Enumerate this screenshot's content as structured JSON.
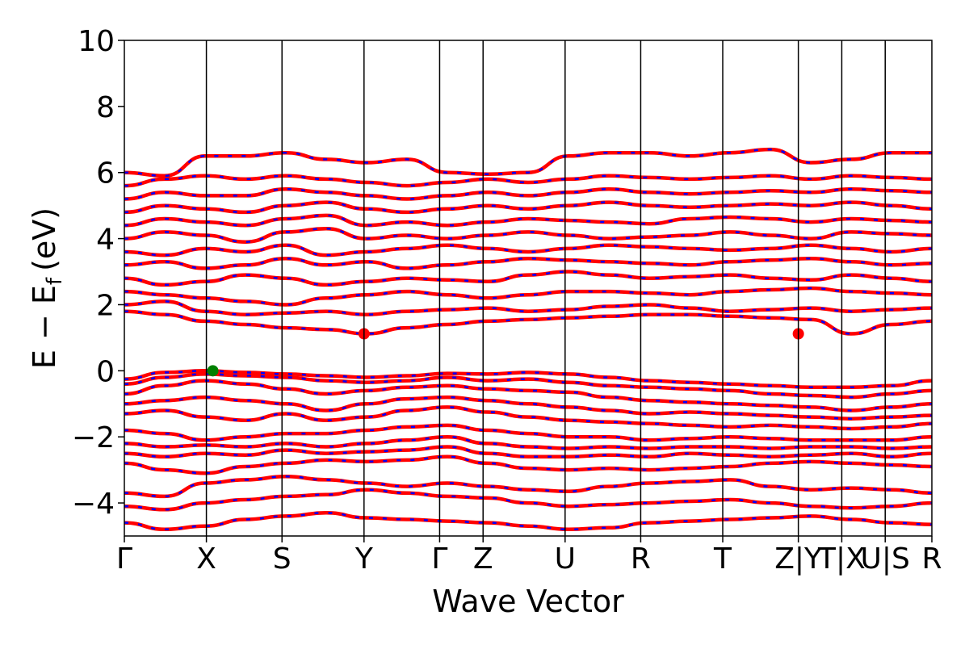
{
  "chart_data": {
    "type": "line",
    "title": "",
    "xlabel": "Wave Vector",
    "ylabel": "E − E",
    "ylabel_subscript": "f",
    "ylabel_unit": "(eV)",
    "ylim": [
      -5,
      10
    ],
    "yticks": [
      -4,
      -2,
      0,
      2,
      4,
      6,
      8,
      10
    ],
    "ytick_labels": [
      "−4",
      "−2",
      "0",
      "2",
      "4",
      "6",
      "8",
      "10"
    ],
    "xlim": [
      0,
      10.04
    ],
    "kpath_ticks": [
      {
        "x": 0.0,
        "label": "Γ"
      },
      {
        "x": 1.02,
        "label": "X"
      },
      {
        "x": 1.96,
        "label": "S"
      },
      {
        "x": 2.98,
        "label": "Y"
      },
      {
        "x": 3.92,
        "label": "Γ"
      },
      {
        "x": 4.46,
        "label": "Z"
      },
      {
        "x": 5.48,
        "label": "U"
      },
      {
        "x": 6.42,
        "label": "R"
      },
      {
        "x": 7.44,
        "label": "T"
      },
      {
        "x": 8.38,
        "label": "Z|Y"
      },
      {
        "x": 8.92,
        "label": "T|X"
      },
      {
        "x": 9.46,
        "label": "U|S"
      },
      {
        "x": 10.04,
        "label": "R"
      }
    ],
    "grid": false,
    "legend": "none",
    "line_style": "red solid with blue dashed overlay",
    "colors": {
      "band_primary": "#ff0000",
      "band_overlay": "#0000ff",
      "vbm": "#008000",
      "cbm": "#ff0000"
    },
    "markers": [
      {
        "name": "valence-band-maximum",
        "x": 1.1,
        "y": 0.0,
        "color": "#008000"
      },
      {
        "name": "conduction-band-minimum-Y",
        "x": 2.98,
        "y": 1.12,
        "color": "#ff0000"
      },
      {
        "name": "conduction-band-minimum-ZY",
        "x": 8.38,
        "y": 1.12,
        "color": "#ff0000"
      }
    ],
    "series": [
      {
        "values": [
          -0.25,
          -0.05,
          0.0,
          -0.05,
          -0.1,
          -0.15,
          -0.2,
          -0.15,
          -0.08,
          -0.1,
          -0.05,
          -0.1,
          -0.2,
          -0.3,
          -0.35,
          -0.4,
          -0.45,
          -0.5,
          -0.5,
          -0.45,
          -0.3
        ]
      },
      {
        "values": [
          -0.4,
          -0.2,
          -0.1,
          -0.15,
          -0.2,
          -0.3,
          -0.35,
          -0.3,
          -0.2,
          -0.3,
          -0.25,
          -0.35,
          -0.45,
          -0.5,
          -0.55,
          -0.6,
          -0.7,
          -0.75,
          -0.8,
          -0.7,
          -0.6
        ]
      },
      {
        "values": [
          -0.7,
          -0.45,
          -0.3,
          -0.4,
          -0.55,
          -0.7,
          -0.6,
          -0.5,
          -0.45,
          -0.55,
          -0.6,
          -0.65,
          -0.8,
          -0.9,
          -0.95,
          -1.0,
          -1.05,
          -1.1,
          -1.2,
          -1.1,
          -1.0
        ]
      },
      {
        "values": [
          -1.0,
          -0.9,
          -0.8,
          -0.9,
          -1.0,
          -1.2,
          -1.0,
          -0.85,
          -0.8,
          -0.9,
          -1.0,
          -1.1,
          -1.2,
          -1.3,
          -1.25,
          -1.3,
          -1.35,
          -1.4,
          -1.45,
          -1.4,
          -1.35
        ]
      },
      {
        "values": [
          -1.3,
          -1.2,
          -1.4,
          -1.5,
          -1.3,
          -1.5,
          -1.4,
          -1.2,
          -1.1,
          -1.25,
          -1.4,
          -1.5,
          -1.55,
          -1.6,
          -1.65,
          -1.7,
          -1.65,
          -1.7,
          -1.75,
          -1.7,
          -1.6
        ]
      },
      {
        "values": [
          -1.8,
          -1.9,
          -2.1,
          -2.0,
          -1.9,
          -1.9,
          -1.8,
          -1.7,
          -1.65,
          -1.8,
          -1.9,
          -2.0,
          -2.0,
          -2.1,
          -2.05,
          -2.0,
          -2.05,
          -2.1,
          -2.1,
          -2.1,
          -2.0
        ]
      },
      {
        "values": [
          -2.2,
          -2.3,
          -2.25,
          -2.3,
          -2.2,
          -2.3,
          -2.2,
          -2.1,
          -2.0,
          -2.2,
          -2.3,
          -2.35,
          -2.3,
          -2.35,
          -2.3,
          -2.3,
          -2.35,
          -2.3,
          -2.3,
          -2.35,
          -2.3
        ]
      },
      {
        "values": [
          -2.5,
          -2.6,
          -2.5,
          -2.55,
          -2.4,
          -2.5,
          -2.45,
          -2.4,
          -2.3,
          -2.5,
          -2.6,
          -2.6,
          -2.55,
          -2.6,
          -2.5,
          -2.55,
          -2.6,
          -2.55,
          -2.5,
          -2.6,
          -2.5
        ]
      },
      {
        "values": [
          -2.8,
          -3.0,
          -3.1,
          -2.9,
          -2.8,
          -2.7,
          -2.75,
          -2.7,
          -2.6,
          -2.8,
          -2.95,
          -3.0,
          -2.95,
          -3.0,
          -2.95,
          -2.9,
          -2.8,
          -2.75,
          -2.8,
          -2.85,
          -2.9
        ]
      },
      {
        "values": [
          -3.7,
          -3.8,
          -3.4,
          -3.3,
          -3.2,
          -3.3,
          -3.4,
          -3.5,
          -3.4,
          -3.5,
          -3.6,
          -3.65,
          -3.5,
          -3.4,
          -3.35,
          -3.3,
          -3.5,
          -3.6,
          -3.55,
          -3.6,
          -3.7
        ]
      },
      {
        "values": [
          -4.1,
          -4.2,
          -4.0,
          -3.9,
          -3.8,
          -3.75,
          -3.6,
          -3.7,
          -3.8,
          -3.85,
          -4.0,
          -4.1,
          -4.05,
          -4.0,
          -3.95,
          -3.9,
          -4.0,
          -4.1,
          -4.15,
          -4.1,
          -4.0
        ]
      },
      {
        "values": [
          -4.6,
          -4.8,
          -4.7,
          -4.5,
          -4.4,
          -4.3,
          -4.45,
          -4.5,
          -4.55,
          -4.6,
          -4.7,
          -4.8,
          -4.75,
          -4.6,
          -4.55,
          -4.5,
          -4.45,
          -4.4,
          -4.5,
          -4.6,
          -4.65
        ]
      },
      {
        "values": [
          1.8,
          1.7,
          1.5,
          1.4,
          1.3,
          1.25,
          1.12,
          1.3,
          1.4,
          1.5,
          1.55,
          1.6,
          1.65,
          1.7,
          1.7,
          1.65,
          1.6,
          1.55,
          1.12,
          1.4,
          1.5
        ]
      },
      {
        "values": [
          2.0,
          2.1,
          1.8,
          1.7,
          1.75,
          1.8,
          1.7,
          1.8,
          1.85,
          1.9,
          1.8,
          1.85,
          1.95,
          2.0,
          1.9,
          1.8,
          1.85,
          1.9,
          1.8,
          1.85,
          1.9
        ]
      },
      {
        "values": [
          2.4,
          2.3,
          2.2,
          2.1,
          2.0,
          2.2,
          2.3,
          2.4,
          2.3,
          2.2,
          2.3,
          2.4,
          2.4,
          2.35,
          2.3,
          2.4,
          2.45,
          2.5,
          2.4,
          2.35,
          2.3
        ]
      },
      {
        "values": [
          2.8,
          2.6,
          2.7,
          2.9,
          2.8,
          2.6,
          2.7,
          2.8,
          2.75,
          2.7,
          2.9,
          3.0,
          2.9,
          2.8,
          2.85,
          2.9,
          2.8,
          2.75,
          2.9,
          2.8,
          2.7
        ]
      },
      {
        "values": [
          3.2,
          3.3,
          3.1,
          3.2,
          3.4,
          3.2,
          3.3,
          3.1,
          3.2,
          3.3,
          3.4,
          3.35,
          3.3,
          3.25,
          3.2,
          3.3,
          3.35,
          3.4,
          3.3,
          3.2,
          3.25
        ]
      },
      {
        "values": [
          3.6,
          3.5,
          3.7,
          3.6,
          3.8,
          3.5,
          3.6,
          3.7,
          3.8,
          3.7,
          3.6,
          3.7,
          3.8,
          3.75,
          3.7,
          3.65,
          3.7,
          3.8,
          3.7,
          3.6,
          3.7
        ]
      },
      {
        "values": [
          4.0,
          4.2,
          4.1,
          3.9,
          4.2,
          4.3,
          4.0,
          4.1,
          4.0,
          4.1,
          4.2,
          4.1,
          4.0,
          4.05,
          4.1,
          4.2,
          4.1,
          4.0,
          4.2,
          4.15,
          4.1
        ]
      },
      {
        "values": [
          4.4,
          4.6,
          4.5,
          4.4,
          4.6,
          4.7,
          4.4,
          4.5,
          4.4,
          4.5,
          4.6,
          4.55,
          4.5,
          4.45,
          4.6,
          4.65,
          4.6,
          4.5,
          4.6,
          4.55,
          4.5
        ]
      },
      {
        "values": [
          4.8,
          5.0,
          4.9,
          4.8,
          5.0,
          5.1,
          4.9,
          4.8,
          4.9,
          5.0,
          4.9,
          5.0,
          5.1,
          5.0,
          4.95,
          5.0,
          5.05,
          5.0,
          5.1,
          5.0,
          4.9
        ]
      },
      {
        "values": [
          5.2,
          5.4,
          5.3,
          5.3,
          5.5,
          5.4,
          5.3,
          5.2,
          5.3,
          5.4,
          5.3,
          5.4,
          5.5,
          5.4,
          5.35,
          5.4,
          5.45,
          5.4,
          5.5,
          5.45,
          5.4
        ]
      },
      {
        "values": [
          5.6,
          5.8,
          5.9,
          5.8,
          5.9,
          5.8,
          5.7,
          5.6,
          5.7,
          5.8,
          5.7,
          5.8,
          5.9,
          5.85,
          5.8,
          5.85,
          5.9,
          5.8,
          5.9,
          5.85,
          5.8
        ]
      },
      {
        "values": [
          6.0,
          5.9,
          6.5,
          6.5,
          6.6,
          6.4,
          6.3,
          6.4,
          6.0,
          5.95,
          6.0,
          6.5,
          6.6,
          6.6,
          6.5,
          6.6,
          6.7,
          6.3,
          6.4,
          6.6,
          6.6
        ]
      }
    ]
  }
}
